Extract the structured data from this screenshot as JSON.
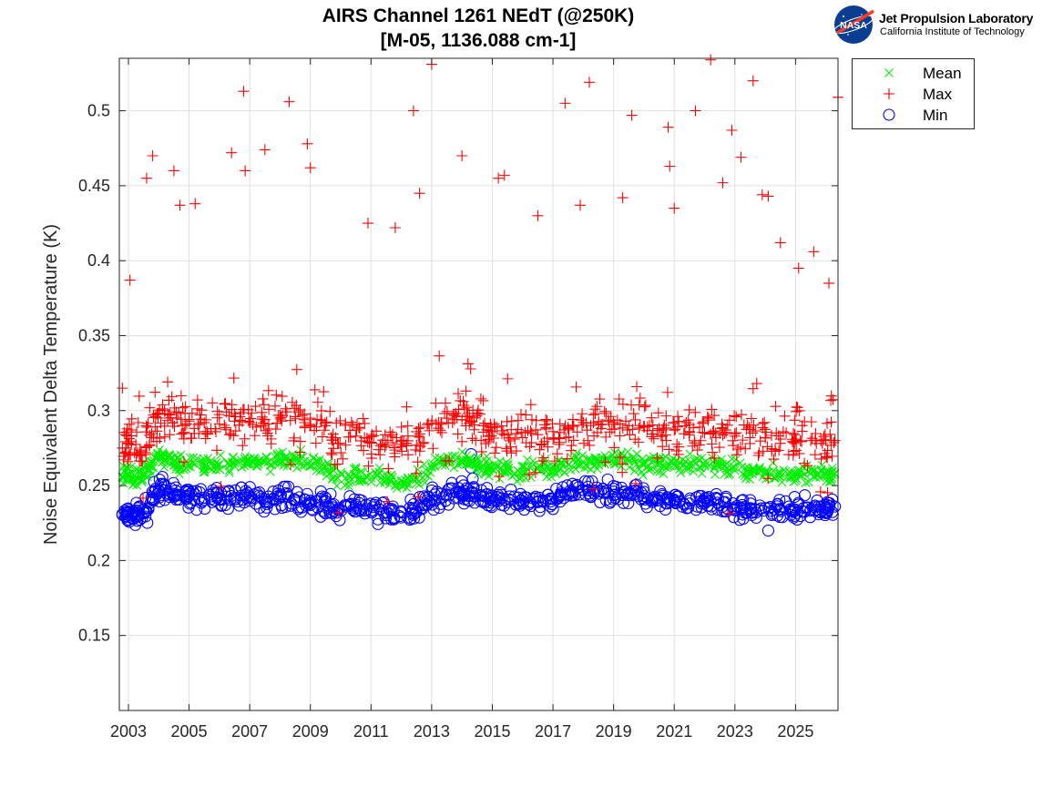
{
  "logo": {
    "badge_text": "NASA",
    "org": "Jet Propulsion Laboratory",
    "sub": "California Institute of Technology"
  },
  "chart_data": {
    "type": "scatter",
    "title": "AIRS Channel 1261 NEdT (@250K)",
    "subtitle": "[M-05, 1136.088 cm-1]",
    "xlabel": "",
    "ylabel": "Noise Equivalent Delta Temperature (K)",
    "xlim": [
      2002.7,
      2026.4
    ],
    "ylim": [
      0.1,
      0.535
    ],
    "xticks": [
      2003,
      2005,
      2007,
      2009,
      2011,
      2013,
      2015,
      2017,
      2019,
      2021,
      2023,
      2025
    ],
    "xtick_labels": [
      "2003",
      "2005",
      "2007",
      "2009",
      "2011",
      "2013",
      "2015",
      "2017",
      "2019",
      "2021",
      "2023",
      "2025"
    ],
    "yticks": [
      0.15,
      0.2,
      0.25,
      0.3,
      0.35,
      0.4,
      0.45,
      0.5
    ],
    "ytick_labels": [
      "0.15",
      "0.2",
      "0.25",
      "0.3",
      "0.35",
      "0.4",
      "0.45",
      "0.5"
    ],
    "grid": true,
    "legend_position": "outside-top-right",
    "series": [
      {
        "name": "Mean",
        "marker": "x",
        "color": "#00ee00",
        "x": [
          2002.8,
          2003.0,
          2003.3,
          2003.6,
          2003.9,
          2004.2,
          2004.6,
          2005.0,
          2005.5,
          2006.0,
          2006.5,
          2007.0,
          2007.5,
          2008.0,
          2008.5,
          2009.0,
          2009.5,
          2009.9,
          2010.5,
          2011.0,
          2011.5,
          2012.0,
          2012.5,
          2013.0,
          2013.5,
          2014.0,
          2014.3,
          2014.7,
          2015.0,
          2015.5,
          2016.0,
          2016.5,
          2017.0,
          2017.5,
          2018.0,
          2018.5,
          2019.0,
          2019.5,
          2020.0,
          2020.5,
          2021.0,
          2021.5,
          2022.0,
          2022.5,
          2023.0,
          2023.5,
          2024.0,
          2024.5,
          2025.0,
          2025.5,
          2026.0,
          2026.3
        ],
        "y": [
          0.256,
          0.258,
          0.255,
          0.26,
          0.268,
          0.27,
          0.266,
          0.264,
          0.263,
          0.264,
          0.265,
          0.265,
          0.266,
          0.268,
          0.266,
          0.266,
          0.262,
          0.255,
          0.257,
          0.255,
          0.254,
          0.253,
          0.254,
          0.262,
          0.266,
          0.266,
          0.265,
          0.263,
          0.261,
          0.26,
          0.259,
          0.261,
          0.262,
          0.264,
          0.266,
          0.267,
          0.268,
          0.266,
          0.265,
          0.265,
          0.264,
          0.264,
          0.263,
          0.263,
          0.26,
          0.259,
          0.259,
          0.258,
          0.258,
          0.258,
          0.258,
          0.258
        ]
      },
      {
        "name": "Max",
        "marker": "+",
        "color": "#ff0000",
        "x": [
          2002.8,
          2003.0,
          2003.3,
          2003.6,
          2003.9,
          2004.2,
          2004.6,
          2005.0,
          2005.5,
          2006.0,
          2006.5,
          2007.0,
          2007.5,
          2008.0,
          2008.5,
          2009.0,
          2009.5,
          2009.9,
          2010.5,
          2011.0,
          2011.5,
          2012.0,
          2012.5,
          2013.0,
          2013.5,
          2014.0,
          2014.3,
          2014.7,
          2015.0,
          2015.5,
          2016.0,
          2016.5,
          2017.0,
          2017.5,
          2018.0,
          2018.5,
          2019.0,
          2019.5,
          2020.0,
          2020.5,
          2021.0,
          2021.5,
          2022.0,
          2022.5,
          2023.0,
          2023.5,
          2024.0,
          2024.5,
          2025.0,
          2025.5,
          2026.0,
          2026.3
        ],
        "y": [
          0.275,
          0.278,
          0.272,
          0.276,
          0.296,
          0.298,
          0.295,
          0.293,
          0.292,
          0.291,
          0.293,
          0.292,
          0.294,
          0.297,
          0.296,
          0.295,
          0.29,
          0.278,
          0.283,
          0.279,
          0.277,
          0.276,
          0.277,
          0.291,
          0.295,
          0.294,
          0.293,
          0.29,
          0.286,
          0.284,
          0.282,
          0.284,
          0.286,
          0.288,
          0.292,
          0.291,
          0.292,
          0.29,
          0.289,
          0.288,
          0.287,
          0.286,
          0.285,
          0.285,
          0.283,
          0.282,
          0.282,
          0.281,
          0.281,
          0.28,
          0.28,
          0.28
        ],
        "outliers": {
          "x": [
            2002.8,
            2003.05,
            2003.6,
            2003.8,
            2004.5,
            2004.7,
            2005.2,
            2006.4,
            2006.8,
            2006.85,
            2007.5,
            2008.3,
            2008.9,
            2009.0,
            2010.9,
            2011.8,
            2012.4,
            2012.6,
            2013.0,
            2014.0,
            2015.2,
            2015.4,
            2016.5,
            2017.4,
            2017.9,
            2018.2,
            2019.3,
            2019.6,
            2020.8,
            2020.85,
            2021.0,
            2021.7,
            2022.2,
            2022.6,
            2022.9,
            2023.2,
            2023.6,
            2023.9,
            2024.1,
            2024.5,
            2025.1,
            2025.6,
            2026.1,
            2026.4
          ],
          "y": [
            0.315,
            0.387,
            0.455,
            0.47,
            0.46,
            0.437,
            0.438,
            0.472,
            0.513,
            0.46,
            0.474,
            0.506,
            0.478,
            0.462,
            0.425,
            0.422,
            0.5,
            0.445,
            0.531,
            0.47,
            0.455,
            0.457,
            0.43,
            0.505,
            0.437,
            0.519,
            0.442,
            0.497,
            0.489,
            0.463,
            0.435,
            0.5,
            0.534,
            0.452,
            0.487,
            0.469,
            0.52,
            0.444,
            0.443,
            0.412,
            0.395,
            0.406,
            0.385,
            0.509
          ]
        }
      },
      {
        "name": "Min",
        "marker": "o",
        "color": "#0000ff",
        "x": [
          2002.8,
          2003.0,
          2003.3,
          2003.6,
          2003.9,
          2004.2,
          2004.6,
          2005.0,
          2005.5,
          2006.0,
          2006.5,
          2007.0,
          2007.5,
          2008.0,
          2008.5,
          2009.0,
          2009.5,
          2009.9,
          2010.5,
          2011.0,
          2011.5,
          2012.0,
          2012.5,
          2013.0,
          2013.5,
          2014.0,
          2014.3,
          2014.7,
          2015.0,
          2015.5,
          2016.0,
          2016.5,
          2017.0,
          2017.5,
          2018.0,
          2018.5,
          2019.0,
          2019.5,
          2020.0,
          2020.5,
          2021.0,
          2021.5,
          2022.0,
          2022.5,
          2023.0,
          2023.5,
          2024.0,
          2024.5,
          2025.0,
          2025.5,
          2026.0,
          2026.3
        ],
        "y": [
          0.231,
          0.232,
          0.23,
          0.233,
          0.248,
          0.247,
          0.244,
          0.243,
          0.242,
          0.241,
          0.242,
          0.242,
          0.241,
          0.242,
          0.24,
          0.24,
          0.237,
          0.234,
          0.236,
          0.233,
          0.232,
          0.232,
          0.233,
          0.24,
          0.244,
          0.245,
          0.246,
          0.243,
          0.24,
          0.239,
          0.238,
          0.239,
          0.241,
          0.244,
          0.247,
          0.246,
          0.246,
          0.245,
          0.243,
          0.242,
          0.24,
          0.238,
          0.238,
          0.237,
          0.235,
          0.235,
          0.235,
          0.234,
          0.234,
          0.234,
          0.235,
          0.236
        ],
        "outliers": {
          "x": [
            2014.3,
            2014.3,
            2024.1
          ],
          "y": [
            0.271,
            0.262,
            0.22
          ]
        }
      }
    ]
  }
}
